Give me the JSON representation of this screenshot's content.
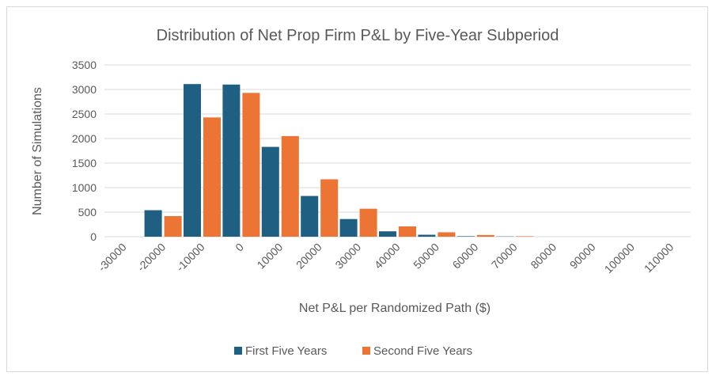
{
  "chart_data": {
    "type": "bar",
    "title": "Distribution of Net Prop Firm P&L by Five-Year Subperiod",
    "xlabel": "Net P&L per Randomized Path ($)",
    "ylabel": "Number of Simulations",
    "ylim": [
      0,
      3500
    ],
    "yticks": [
      0,
      500,
      1000,
      1500,
      2000,
      2500,
      3000,
      3500
    ],
    "grid": true,
    "legend": "bottom",
    "categories": [
      "-30000",
      "-20000",
      "-10000",
      "0",
      "10000",
      "20000",
      "30000",
      "40000",
      "50000",
      "60000",
      "70000",
      "80000",
      "90000",
      "100000",
      "110000"
    ],
    "series": [
      {
        "name": "First Five Years",
        "color": "#1f5f82",
        "values": [
          0,
          540,
          3110,
          3100,
          1830,
          830,
          360,
          110,
          40,
          10,
          5,
          0,
          0,
          0,
          0
        ]
      },
      {
        "name": "Second Five Years",
        "color": "#ec7435",
        "values": [
          0,
          420,
          2430,
          2930,
          2050,
          1170,
          570,
          210,
          90,
          35,
          10,
          0,
          0,
          0,
          0
        ]
      }
    ]
  }
}
